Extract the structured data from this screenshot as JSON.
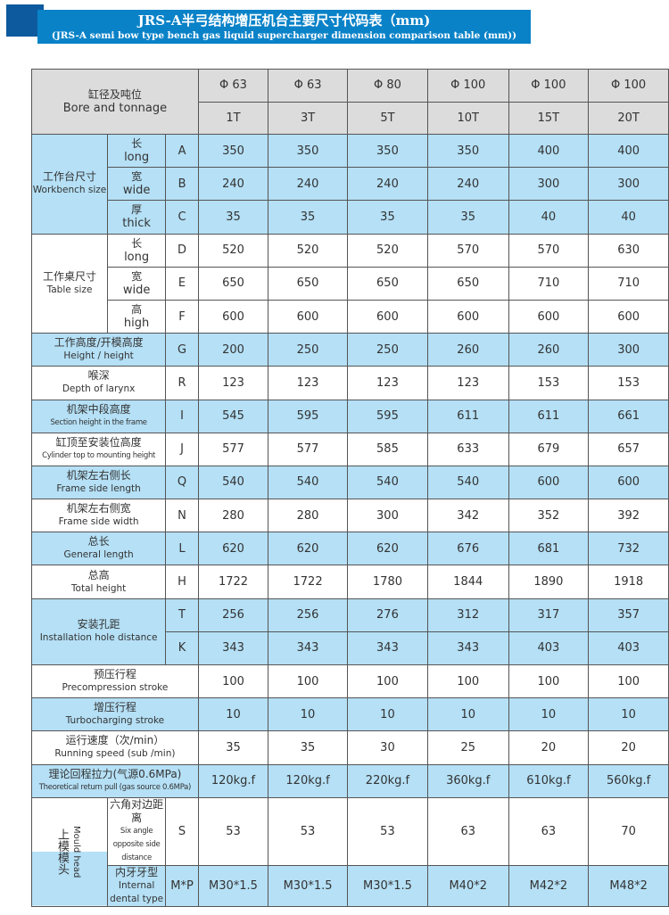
{
  "title": {
    "cn": "JRS-A半弓结构增压机台主要尺寸代码表（mm)",
    "en": "(JRS-A semi bow type bench gas liquid supercharger dimension comparison table (mm))"
  },
  "header": {
    "label_cn": "缸径及吨位",
    "label_en": "Bore and tonnage",
    "bores": [
      "Φ 63",
      "Φ 63",
      "Φ 80",
      "Φ 100",
      "Φ 100",
      "Φ 100"
    ],
    "tonnages": [
      "1T",
      "3T",
      "5T",
      "10T",
      "15T",
      "20T"
    ]
  },
  "workbench": {
    "cn": "工作台尺寸",
    "en": "Workbench size",
    "rows": [
      {
        "cn": "长",
        "en": "long",
        "code": "A",
        "values": [
          "350",
          "350",
          "350",
          "350",
          "400",
          "400"
        ]
      },
      {
        "cn": "宽",
        "en": "wide",
        "code": "B",
        "values": [
          "240",
          "240",
          "240",
          "240",
          "300",
          "300"
        ]
      },
      {
        "cn": "厚",
        "en": "thick",
        "code": "C",
        "values": [
          "35",
          "35",
          "35",
          "35",
          "40",
          "40"
        ]
      }
    ]
  },
  "table_size": {
    "cn": "工作桌尺寸",
    "en": "Table size",
    "rows": [
      {
        "cn": "长",
        "en": "long",
        "code": "D",
        "values": [
          "520",
          "520",
          "520",
          "570",
          "570",
          "630"
        ]
      },
      {
        "cn": "宽",
        "en": "wide",
        "code": "E",
        "values": [
          "650",
          "650",
          "650",
          "650",
          "710",
          "710"
        ]
      },
      {
        "cn": "高",
        "en": "high",
        "code": "F",
        "values": [
          "600",
          "600",
          "600",
          "600",
          "600",
          "600"
        ]
      }
    ]
  },
  "rows": [
    {
      "cn": "工作高度/开模高度",
      "en": "Height / height",
      "code": "G",
      "values": [
        "200",
        "250",
        "250",
        "260",
        "260",
        "300"
      ]
    },
    {
      "cn": "喉深",
      "en": "Depth of larynx",
      "code": "R",
      "values": [
        "123",
        "123",
        "123",
        "123",
        "153",
        "153"
      ]
    },
    {
      "cn": "机架中段高度",
      "en": "Section height in the frame",
      "code": "I",
      "values": [
        "545",
        "595",
        "595",
        "611",
        "611",
        "661"
      ]
    },
    {
      "cn": "缸顶至安装位高度",
      "en": "Cylinder top to mounting height",
      "code": "J",
      "values": [
        "577",
        "577",
        "585",
        "633",
        "679",
        "657"
      ]
    },
    {
      "cn": "机架左右侧长",
      "en": "Frame side length",
      "code": "Q",
      "values": [
        "540",
        "540",
        "540",
        "540",
        "600",
        "600"
      ]
    },
    {
      "cn": "机架左右侧宽",
      "en": "Frame side width",
      "code": "N",
      "values": [
        "280",
        "280",
        "300",
        "342",
        "352",
        "392"
      ]
    },
    {
      "cn": "总长",
      "en": "General length",
      "code": "L",
      "values": [
        "620",
        "620",
        "620",
        "676",
        "681",
        "732"
      ]
    },
    {
      "cn": "总高",
      "en": "Total height",
      "code": "H",
      "values": [
        "1722",
        "1722",
        "1780",
        "1844",
        "1890",
        "1918"
      ]
    }
  ],
  "install": {
    "cn": "安装孔距",
    "en": "Installation hole distance",
    "rows": [
      {
        "code": "T",
        "values": [
          "256",
          "256",
          "276",
          "312",
          "317",
          "357"
        ]
      },
      {
        "code": "K",
        "values": [
          "343",
          "343",
          "343",
          "343",
          "403",
          "403"
        ]
      }
    ]
  },
  "rows2": [
    {
      "cn": "预压行程",
      "en": "Precompression stroke",
      "values": [
        "100",
        "100",
        "100",
        "100",
        "100",
        "100"
      ]
    },
    {
      "cn": "增压行程",
      "en": "Turbocharging stroke",
      "values": [
        "10",
        "10",
        "10",
        "10",
        "10",
        "10"
      ]
    },
    {
      "cn": "运行速度（次/min）",
      "en": "Running speed (sub /min)",
      "values": [
        "35",
        "35",
        "30",
        "25",
        "20",
        "20"
      ]
    },
    {
      "cn": "理论回程拉力(气源0.6MPa)",
      "en": "Theoretical return pull (gas source 0.6MPa)",
      "values": [
        "120kg.f",
        "120kg.f",
        "220kg.f",
        "360kg.f",
        "610kg.f",
        "560kg.f"
      ]
    }
  ],
  "mould": {
    "cn": "上模模头",
    "en": "Mould head",
    "rows": [
      {
        "cn": "六角对边距离",
        "en": "Six angle opposite side distance",
        "code": "S",
        "values": [
          "53",
          "53",
          "53",
          "63",
          "63",
          "70"
        ]
      },
      {
        "cn": "内牙牙型",
        "en": "Internal dental type",
        "code": "M*P",
        "values": [
          "M30*1.5",
          "M30*1.5",
          "M30*1.5",
          "M40*2",
          "M42*2",
          "M48*2"
        ]
      }
    ]
  }
}
